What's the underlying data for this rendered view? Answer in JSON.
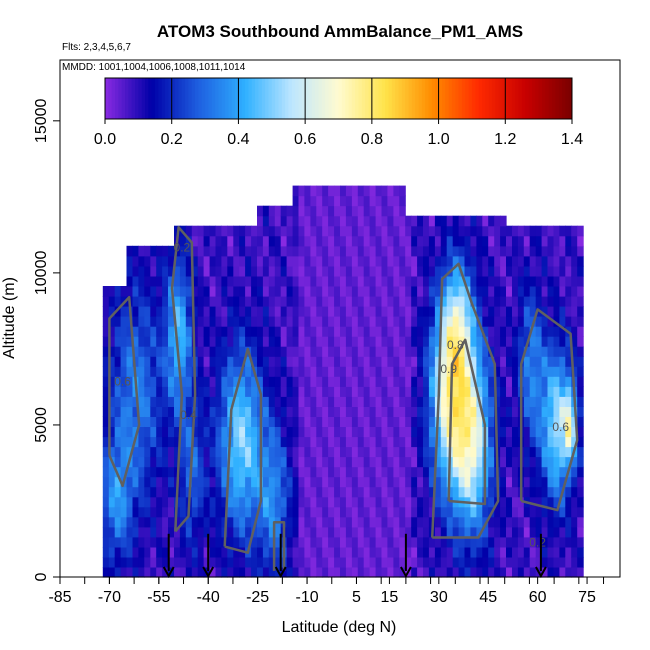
{
  "chart_data": {
    "type": "heatmap",
    "title": "ATOM3 Southbound AmmBalance_PM1_AMS",
    "subtitle_flights": "Flts: 2,3,4,5,6,7",
    "subtitle_dates": "MMDD: 1001,1004,1006,1008,1011,1014",
    "xlabel": "Latitude (deg N)",
    "ylabel": "Altitude (m)",
    "xlim": [
      -85,
      85
    ],
    "ylim": [
      0,
      17000
    ],
    "x_ticks": [
      -85,
      -70,
      -55,
      -40,
      -25,
      -10,
      5,
      15,
      30,
      45,
      60,
      75
    ],
    "x_tick_labels": [
      "-85",
      "-70",
      "-55",
      "-40",
      "-25",
      "-10",
      "5",
      "15",
      "30",
      "45",
      "60",
      "75"
    ],
    "y_ticks": [
      0,
      5000,
      10000,
      15000
    ],
    "y_tick_labels": [
      "0",
      "5000",
      "10000",
      "15000"
    ],
    "colorbar": {
      "min": 0.0,
      "max": 1.4,
      "ticks": [
        0.0,
        0.2,
        0.4,
        0.6,
        0.8,
        1.0,
        1.2,
        1.4
      ],
      "tick_labels": [
        "0.0",
        "0.2",
        "0.4",
        "0.6",
        "0.8",
        "1.0",
        "1.2",
        "1.4"
      ],
      "colors": [
        "#8a2be2",
        "#0000a8",
        "#1e5fe0",
        "#2fb0ff",
        "#bde6ff",
        "#fffbd0",
        "#ffe34a",
        "#ff8c00",
        "#ff2a00",
        "#c80000",
        "#7a0000"
      ]
    },
    "contour_labels": [
      "0.2",
      "0.6",
      "0.8",
      "0.9",
      "0.6",
      "0.4",
      "0.2"
    ],
    "arrow_latitudes": [
      -52,
      -40,
      -18,
      20,
      61
    ],
    "arrow_color": "#000000",
    "contour_color": "#606060",
    "approx_field_note_ranges": [
      {
        "lat": [
          -72,
          -45
        ],
        "alt": [
          0,
          11000
        ],
        "value": 0.35
      },
      {
        "lat": [
          -50,
          -42
        ],
        "alt": [
          3000,
          11000
        ],
        "value": 0.55
      },
      {
        "lat": [
          -40,
          -15
        ],
        "alt": [
          0,
          9000
        ],
        "value": 0.45
      },
      {
        "lat": [
          -15,
          25
        ],
        "alt": [
          0,
          13000
        ],
        "value": 0.05
      },
      {
        "lat": [
          28,
          48
        ],
        "alt": [
          1000,
          10000
        ],
        "value": 0.8
      },
      {
        "lat": [
          50,
          72
        ],
        "alt": [
          2000,
          9000
        ],
        "value": 0.6
      }
    ]
  }
}
